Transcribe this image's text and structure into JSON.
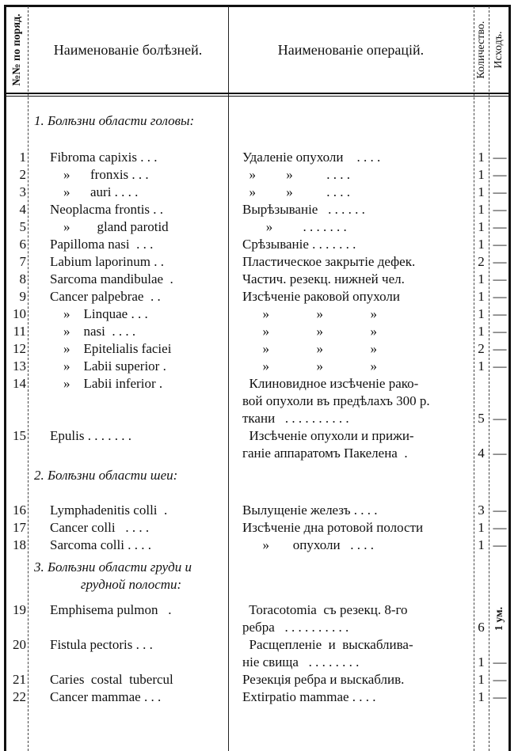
{
  "header": {
    "num": "№№ по поряд.",
    "disease": "Наименованіе болѣзней.",
    "operation": "Наименованіе операцій.",
    "quantity": "Количество.",
    "outcome": "Исходъ."
  },
  "sections": [
    {
      "title": [
        "1. Болѣзни области головы:"
      ],
      "rows": [
        {
          "n": "1",
          "d": "Fibroma capixis . . .",
          "op": [
            "Удаленіе опухоли    . . . ."
          ],
          "q": "1",
          "o": "—"
        },
        {
          "n": "2",
          "d": "    »      fronxis . . .",
          "op": [
            "  »         »          . . . ."
          ],
          "q": "1",
          "o": "—"
        },
        {
          "n": "3",
          "d": "    »      auri . . . .",
          "op": [
            "  »         »          . . . ."
          ],
          "q": "1",
          "o": "—"
        },
        {
          "n": "4",
          "d": "Neoplacma frontis . .",
          "op": [
            "Вырѣзываніе   . . . . . ."
          ],
          "q": "1",
          "o": "—"
        },
        {
          "n": "5",
          "d": "    »        gland parotid",
          "op": [
            "       »         . . . . . . ."
          ],
          "q": "1",
          "o": "—"
        },
        {
          "n": "6",
          "d": "Papilloma nasi  . . .",
          "op": [
            "Срѣзываніе . . . . . . ."
          ],
          "q": "1",
          "o": "—"
        },
        {
          "n": "7",
          "d": "Labium laporinum . .",
          "op": [
            "Пластическое закрытіе дефек."
          ],
          "q": "2",
          "o": "—"
        },
        {
          "n": "8",
          "d": "Sarcoma mandibulae  .",
          "op": [
            "Частич. резекц. нижней чел."
          ],
          "q": "1",
          "o": "—"
        },
        {
          "n": "9",
          "d": "Cancer palpebrae  . .",
          "op": [
            "Изсѣченіе раковой опухоли"
          ],
          "q": "1",
          "o": "—"
        },
        {
          "n": "10",
          "d": "    »    Linquae . . .",
          "op": [
            "      »              »              »"
          ],
          "q": "1",
          "o": "—"
        },
        {
          "n": "11",
          "d": "    »    nasi  . . . .",
          "op": [
            "      »              »              »"
          ],
          "q": "1",
          "o": "—"
        },
        {
          "n": "12",
          "d": "    »    Epitelialis faciei",
          "op": [
            "      »              »              »"
          ],
          "q": "2",
          "o": "—"
        },
        {
          "n": "13",
          "d": "    »    Labii superior .",
          "op": [
            "      »              »              »"
          ],
          "q": "1",
          "o": "—"
        },
        {
          "n": "14",
          "d": "    »    Labii inferior .",
          "op": [
            "  Клиновидное изсѣченіе рако-",
            "вой опухоли въ предѣлахъ 300 р.",
            "ткани   . . . . . . . . . ."
          ],
          "q": "5",
          "o": "—"
        },
        {
          "n": "15",
          "d": "Epulis . . . . . . .",
          "op": [
            "  Изсѣченіе опухоли и прижи-",
            "ганіе аппаратомъ Пакелена  ."
          ],
          "q": "4",
          "o": "—"
        }
      ]
    },
    {
      "title": [
        "2. Болѣзни области шеи:"
      ],
      "rows": [
        {
          "n": "16",
          "d": "Lymphadenitis colli  .",
          "op": [
            "Вылущеніе железъ . . . ."
          ],
          "q": "3",
          "o": "—"
        },
        {
          "n": "17",
          "d": "Cancer colli   . . . .",
          "op": [
            "Изсѣченіе дна ротовой полости"
          ],
          "q": "1",
          "o": "—"
        },
        {
          "n": "18",
          "d": "Sarcoma colli . . . .",
          "op": [
            "      »       опухоли   . . . ."
          ],
          "q": "1",
          "o": "—"
        }
      ]
    },
    {
      "title": [
        "3. Болѣзни области груди и",
        "грудной полости:"
      ],
      "rows": [
        {
          "n": "19",
          "d": "Emphisema pulmon   .",
          "op": [
            "  Toracotomia  съ резекц. 8-го",
            "ребра   . . . . . . . . . ."
          ],
          "q": "6",
          "o": "1 ум."
        },
        {
          "n": "20",
          "d": "Fistula pectoris . . .",
          "op": [
            "  Расщепленіе  и  выскаблива-",
            "ніе свища   . . . . . . . ."
          ],
          "q": "1",
          "o": "—"
        },
        {
          "n": "21",
          "d": "Caries  costal  tubercul",
          "op": [
            "Резекція ребра и выскаблив."
          ],
          "q": "1",
          "o": "—"
        },
        {
          "n": "22",
          "d": "Cancer mammae . . .",
          "op": [
            "Extirpatio mammae . . . ."
          ],
          "q": "1",
          "o": "—"
        }
      ]
    }
  ]
}
